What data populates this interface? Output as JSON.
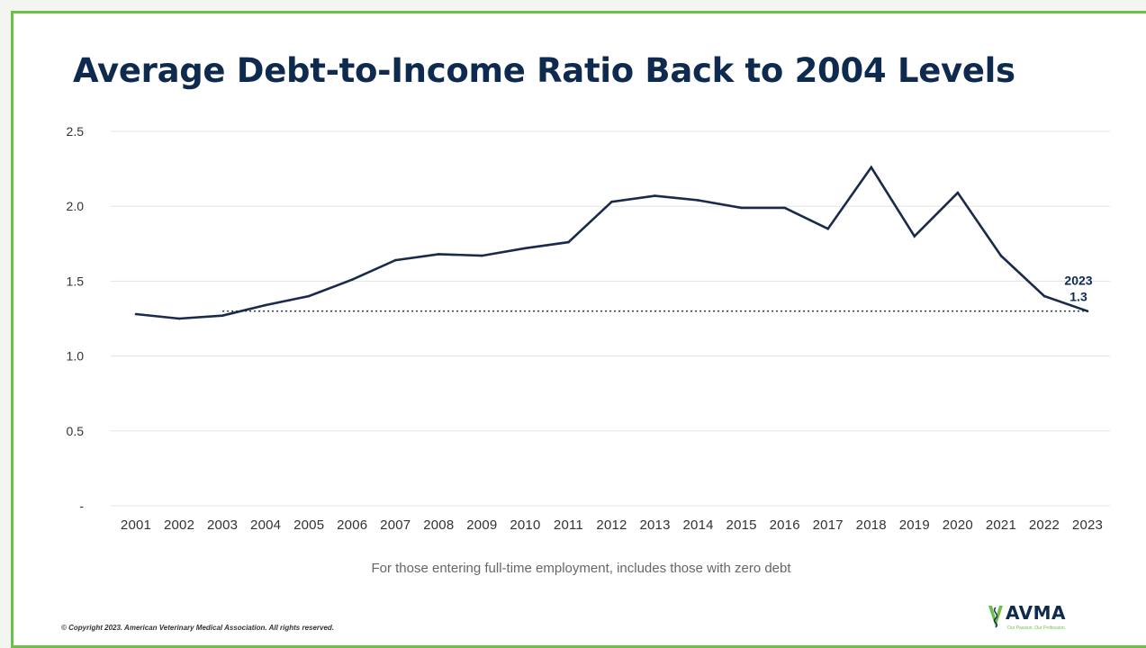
{
  "title": "Average Debt-to-Income Ratio Back to 2004 Levels",
  "subtitle_note": "For those entering full-time employment, includes those with zero debt",
  "copyright": "© Copyright 2023. American Veterinary Medical Association. All rights reserved.",
  "logo": {
    "text": "AVMA",
    "tagline": "Our Passion. Our Profession.",
    "icon": "caduceus-icon"
  },
  "colors": {
    "line": "#1a2a4a",
    "frame": "#6cc04a",
    "title": "#0f2a4f"
  },
  "chart_data": {
    "type": "line",
    "title": "Average Debt-to-Income Ratio Back to 2004 Levels",
    "xlabel": "",
    "ylabel": "",
    "categories": [
      "2001",
      "2002",
      "2003",
      "2004",
      "2005",
      "2006",
      "2007",
      "2008",
      "2009",
      "2010",
      "2011",
      "2012",
      "2013",
      "2014",
      "2015",
      "2016",
      "2017",
      "2018",
      "2019",
      "2020",
      "2021",
      "2022",
      "2023"
    ],
    "series": [
      {
        "values": [
          1.28,
          1.25,
          1.27,
          1.34,
          1.4,
          1.51,
          1.64,
          1.68,
          1.67,
          1.72,
          1.76,
          2.03,
          2.07,
          2.04,
          1.99,
          1.99,
          1.85,
          2.26,
          1.8,
          2.09,
          1.67,
          1.4,
          1.3
        ]
      }
    ],
    "ylim": [
      0,
      2.5
    ],
    "yticks": [
      {
        "value": 2.5,
        "label": "2.5"
      },
      {
        "value": 2.0,
        "label": "2.0"
      },
      {
        "value": 1.5,
        "label": "1.5"
      },
      {
        "value": 1.0,
        "label": "1.0"
      },
      {
        "value": 0.5,
        "label": "0.5"
      },
      {
        "value": 0,
        "label": "-"
      }
    ],
    "reference_line": {
      "value": 1.3,
      "from": "2003",
      "to": "2023",
      "style": "dotted"
    },
    "annotation": {
      "year_label": "2023",
      "value_label": "1.3"
    },
    "grid": true,
    "legend": "none"
  }
}
